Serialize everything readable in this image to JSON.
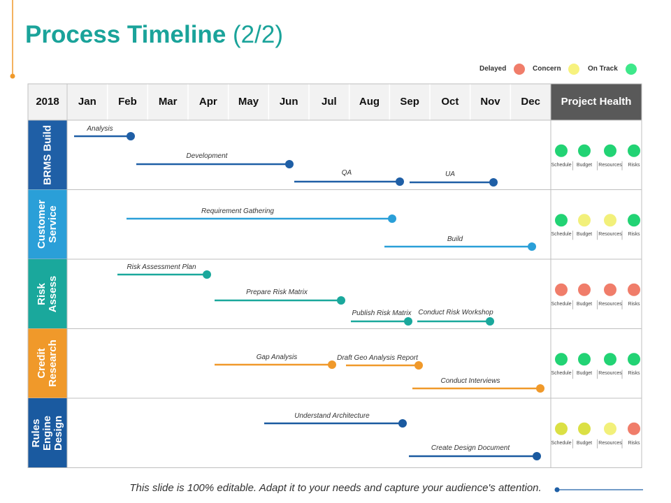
{
  "header": {
    "title": "Process Timeline",
    "page": "(2/2)"
  },
  "legend": [
    {
      "label": "Delayed",
      "color": "#f07d6a"
    },
    {
      "label": "Concern",
      "color": "#f7f27e"
    },
    {
      "label": "On Track",
      "color": "#3ee88a"
    }
  ],
  "table": {
    "year": "2018",
    "months": [
      "Jan",
      "Feb",
      "Mar",
      "Apr",
      "May",
      "Jun",
      "Jul",
      "Aug",
      "Sep",
      "Oct",
      "Nov",
      "Dec"
    ],
    "health_header": "Project Health",
    "health_labels": [
      "Schedule",
      "Budget",
      "Resources",
      "Risks"
    ],
    "rows": [
      {
        "label": "BRMS Build",
        "color": "#1f5fa6",
        "tasks": [
          "Analysis",
          "Development",
          "QA",
          "UA"
        ],
        "health": [
          "#22d374",
          "#22d374",
          "#22d374",
          "#22d374"
        ]
      },
      {
        "label": "Customer Service",
        "color": "#2a9fd8",
        "tasks": [
          "Requirement Gathering",
          "Build"
        ],
        "health": [
          "#22d374",
          "#f2f07a",
          "#f2f07a",
          "#22d374"
        ]
      },
      {
        "label": "Risk Assess",
        "color": "#1aa89c",
        "tasks": [
          "Risk Assessment Plan",
          "Prepare Risk Matrix",
          "Publish Risk Matrix",
          "Conduct Risk Workshop"
        ],
        "health": [
          "#f07d6a",
          "#f07d6a",
          "#f07d6a",
          "#f07d6a"
        ]
      },
      {
        "label": "Credit Research",
        "color": "#f0992a",
        "tasks": [
          "Gap Analysis",
          "Draft Geo Analysis Report",
          "Conduct Interviews"
        ],
        "health": [
          "#22d374",
          "#22d374",
          "#22d374",
          "#22d374"
        ]
      },
      {
        "label": "Rules Engine Design",
        "color": "#1a5aa0",
        "tasks": [
          "Understand Architecture",
          "Create Design Document"
        ],
        "health": [
          "#dbe044",
          "#dbe044",
          "#f2f07a",
          "#f07d6a"
        ]
      }
    ]
  },
  "footer": "This slide is 100% editable. Adapt it to your needs and capture your audience's attention."
}
